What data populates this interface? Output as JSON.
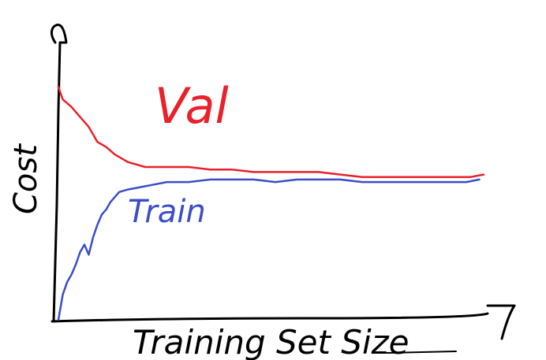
{
  "chart_data": {
    "type": "line",
    "title": "",
    "xlabel": "Training Set Size",
    "ylabel": "Cost",
    "xlim": [
      0,
      100
    ],
    "ylim": [
      0,
      100
    ],
    "grid": false,
    "series": [
      {
        "name": "Val",
        "color": "#e8212a",
        "x": [
          0,
          1,
          3,
          5,
          7,
          9,
          11,
          13,
          16,
          20,
          25,
          30,
          35,
          40,
          45,
          50,
          55,
          60,
          65,
          70,
          75,
          80,
          85,
          90,
          95,
          98
        ],
        "y": [
          93,
          88,
          85,
          81,
          77,
          71,
          69,
          66,
          63,
          61,
          61,
          61,
          60,
          60,
          59,
          59,
          59,
          59,
          58,
          57,
          57,
          57,
          57,
          57,
          57,
          58
        ]
      },
      {
        "name": "Train",
        "color": "#3a4ec8",
        "x": [
          0,
          1,
          2,
          3,
          4,
          5,
          6,
          7,
          8,
          9,
          10,
          11,
          12,
          13,
          14,
          16,
          19,
          22,
          25,
          30,
          35,
          40,
          45,
          50,
          55,
          60,
          65,
          70,
          75,
          80,
          85,
          90,
          94,
          97
        ],
        "y": [
          0,
          10,
          15,
          18,
          22,
          27,
          30,
          26,
          33,
          38,
          42,
          44,
          47,
          49,
          51,
          52,
          53,
          54,
          55,
          55,
          56,
          56,
          56,
          55,
          56,
          56,
          56,
          55,
          55,
          55,
          55,
          55,
          55,
          56
        ]
      }
    ]
  }
}
